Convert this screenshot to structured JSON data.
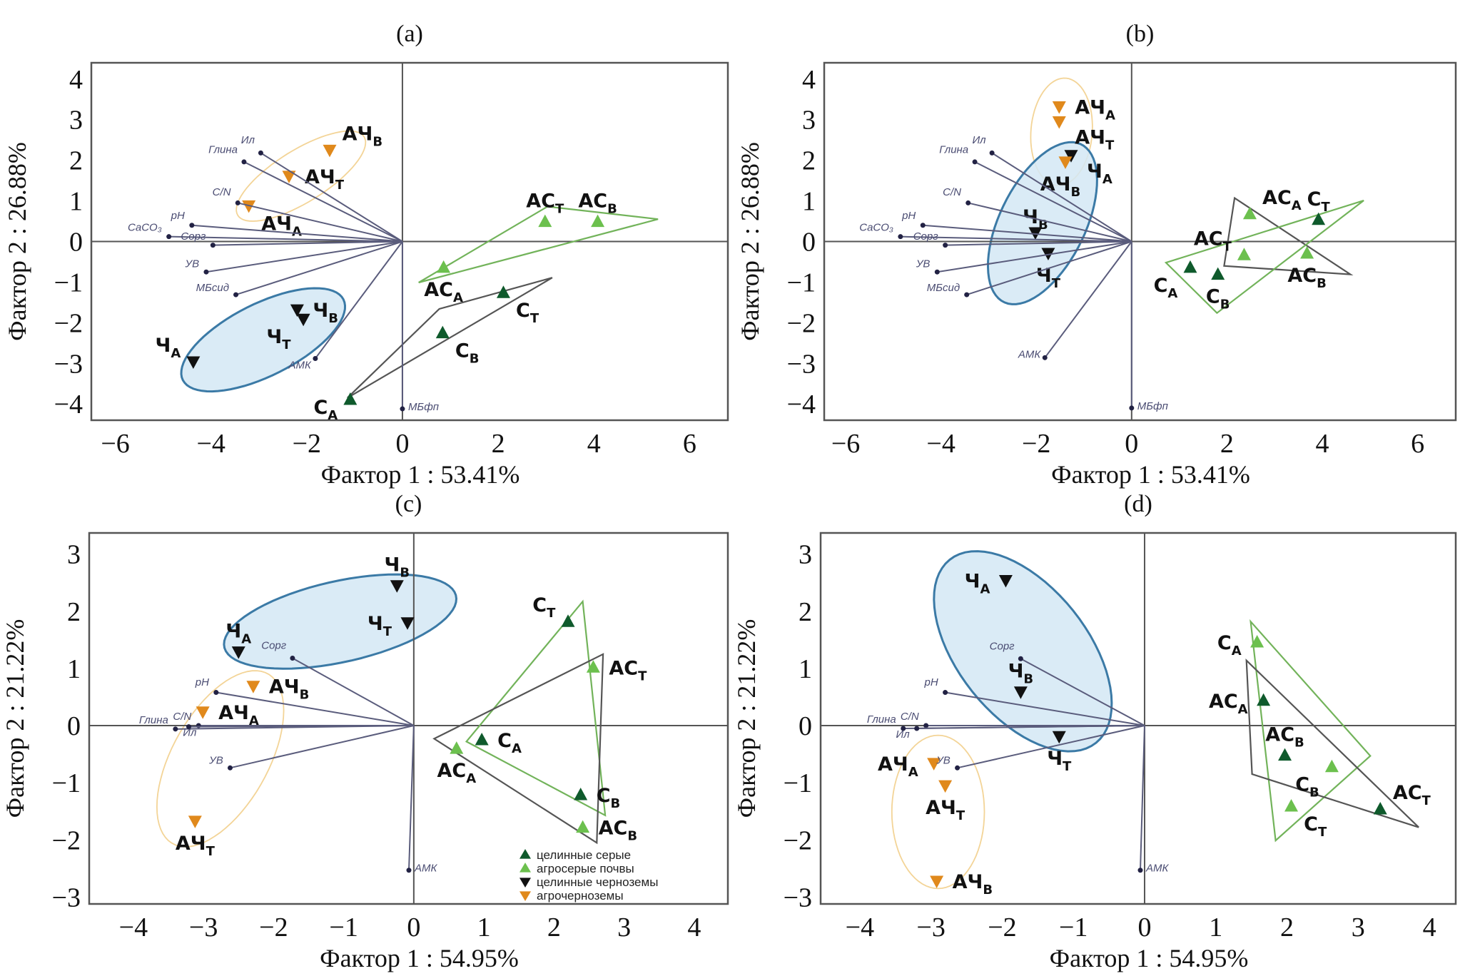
{
  "colors": {
    "dark_green": "#0f5a2c",
    "light_green": "#6cc04e",
    "black": "#111111",
    "orange": "#e0891c",
    "ellipse_fill": "#d3e8f4",
    "ellipse_stroke": "#3b7aa6",
    "orange_ellipse": "#f3d497",
    "green_poly": "#72b35a",
    "grey_poly": "#555555",
    "vector": "#5a5c7c",
    "axis": "#555555"
  },
  "chart_data": [
    {
      "type": "scatter",
      "title": "(a)",
      "xlabel": "Фактор 1 : 53.41%",
      "ylabel": "Фактор 2 : 26.88%",
      "xlim": [
        -6.5,
        6.8
      ],
      "ylim": [
        -4.4,
        4.4
      ],
      "xticks": [
        -6,
        -4,
        -2,
        0,
        2,
        4,
        6
      ],
      "yticks": [
        -4,
        -3,
        -2,
        -1,
        0,
        1,
        2,
        3,
        4
      ],
      "grid": false,
      "points": [
        {
          "label": "АЧ",
          "sub": "В",
          "x": -1.52,
          "y": 2.25,
          "marker": "orange",
          "label_side": "above-right"
        },
        {
          "label": "АЧ",
          "sub": "Т",
          "x": -2.37,
          "y": 1.61,
          "marker": "orange",
          "label_side": "right"
        },
        {
          "label": "АЧ",
          "sub": "А",
          "x": -3.21,
          "y": 0.88,
          "marker": "orange",
          "label_side": "below-right"
        },
        {
          "label": "Ч",
          "sub": "В",
          "x": -2.2,
          "y": -1.68,
          "marker": "black",
          "label_side": "right"
        },
        {
          "label": "Ч",
          "sub": "Т",
          "x": -2.07,
          "y": -1.91,
          "marker": "black",
          "label_side": "below-left"
        },
        {
          "label": "Ч",
          "sub": "А",
          "x": -4.37,
          "y": -2.96,
          "marker": "black",
          "label_side": "above-left"
        },
        {
          "label": "АС",
          "sub": "Т",
          "x": 2.98,
          "y": 0.49,
          "marker": "light_green",
          "label_side": "above"
        },
        {
          "label": "АС",
          "sub": "В",
          "x": 4.08,
          "y": 0.49,
          "marker": "light_green",
          "label_side": "above"
        },
        {
          "label": "АС",
          "sub": "А",
          "x": 0.86,
          "y": -0.64,
          "marker": "light_green",
          "label_side": "below"
        },
        {
          "label": "С",
          "sub": "Т",
          "x": 2.11,
          "y": -1.26,
          "marker": "dark_green",
          "label_side": "below-right"
        },
        {
          "label": "С",
          "sub": "В",
          "x": 0.84,
          "y": -2.25,
          "marker": "dark_green",
          "label_side": "below-right"
        },
        {
          "label": "С",
          "sub": "А",
          "x": -1.09,
          "y": -3.89,
          "marker": "dark_green",
          "label_side": "below-left"
        }
      ],
      "polygons": [
        {
          "color": "green_poly",
          "points": [
            [
              3.03,
              0.86
            ],
            [
              5.34,
              0.55
            ],
            [
              0.34,
              -1.01
            ]
          ]
        },
        {
          "color": "grey_poly",
          "points": [
            [
              3.13,
              -0.89
            ],
            [
              0.77,
              -1.66
            ],
            [
              -1.15,
              -3.85
            ]
          ]
        }
      ],
      "ellipses": [
        {
          "kind": "blue",
          "center": [
            -2.91,
            -2.42
          ],
          "major_end": [
            -1.27,
            -1.36
          ],
          "minor_end": [
            -2.42,
            -3.12
          ]
        },
        {
          "kind": "orange",
          "center": [
            -2.12,
            1.61
          ],
          "major_end": [
            -0.83,
            2.62
          ],
          "minor_end": [
            -1.72,
            1.15
          ]
        }
      ],
      "vectors": [
        {
          "name": "Ил",
          "x": -2.96,
          "y": 2.18
        },
        {
          "name": "Глина",
          "x": -3.31,
          "y": 1.96
        },
        {
          "name": "C/N",
          "x": -3.44,
          "y": 0.95
        },
        {
          "name": "pH",
          "x": -4.4,
          "y": 0.4
        },
        {
          "name": "CaCO₃",
          "x": -4.88,
          "y": 0.12
        },
        {
          "name": "Сорг",
          "x": -3.96,
          "y": -0.09
        },
        {
          "name": "УВ",
          "x": -4.1,
          "y": -0.75
        },
        {
          "name": "МБсид",
          "x": -3.48,
          "y": -1.31
        },
        {
          "name": "АМК",
          "x": -1.82,
          "y": -2.88
        },
        {
          "name": "МБфп",
          "x": 0,
          "y": -4.12
        }
      ]
    },
    {
      "type": "scatter",
      "title": "(b)",
      "xlabel": "Фактор 1 : 53.41%",
      "ylabel": "Фактор 2 : 26.88%",
      "xlim": [
        -6.45,
        6.8
      ],
      "ylim": [
        -4.4,
        4.4
      ],
      "xticks": [
        -6,
        -4,
        -2,
        0,
        2,
        4,
        6
      ],
      "yticks": [
        -4,
        -3,
        -2,
        -1,
        0,
        1,
        2,
        3,
        4
      ],
      "grid": false,
      "points": [
        {
          "label": "АЧ",
          "sub": "А",
          "x": -1.52,
          "y": 3.32,
          "marker": "orange",
          "label_side": "right"
        },
        {
          "label": "АЧ",
          "sub": "Т",
          "x": -1.52,
          "y": 2.95,
          "marker": "orange",
          "label_side": "right"
        },
        {
          "label": "Ч",
          "sub": "А",
          "x": -1.27,
          "y": 2.12,
          "marker": "black",
          "label_side": "right"
        },
        {
          "label": "АЧ",
          "sub": "В",
          "x": -1.39,
          "y": 1.96,
          "marker": "orange",
          "label_side": "below"
        },
        {
          "label": "Ч",
          "sub": "В",
          "x": -2.02,
          "y": 0.22,
          "marker": "black",
          "label_side": "above"
        },
        {
          "label": "Ч",
          "sub": "Т",
          "x": -1.75,
          "y": -0.29,
          "marker": "black",
          "label_side": "below"
        },
        {
          "label": "АС",
          "sub": "А",
          "x": 2.48,
          "y": 0.68,
          "marker": "light_green",
          "label_side": "above-right"
        },
        {
          "label": "С",
          "sub": "Т",
          "x": 3.92,
          "y": 0.54,
          "marker": "dark_green",
          "label_side": "above"
        },
        {
          "label": "АС",
          "sub": "Т",
          "x": 2.36,
          "y": -0.33,
          "marker": "light_green",
          "label_side": "above-left"
        },
        {
          "label": "АС",
          "sub": "В",
          "x": 3.68,
          "y": -0.29,
          "marker": "light_green",
          "label_side": "below"
        },
        {
          "label": "С",
          "sub": "А",
          "x": 1.23,
          "y": -0.64,
          "marker": "dark_green",
          "label_side": "below-left"
        },
        {
          "label": "С",
          "sub": "В",
          "x": 1.81,
          "y": -0.81,
          "marker": "dark_green",
          "label_side": "below"
        }
      ],
      "polygons": [
        {
          "color": "grey_poly",
          "points": [
            [
              2.16,
              1.07
            ],
            [
              4.59,
              -0.81
            ],
            [
              1.94,
              -0.6
            ]
          ]
        },
        {
          "color": "green_poly",
          "points": [
            [
              4.87,
              1.01
            ],
            [
              1.79,
              -1.76
            ],
            [
              0.72,
              -0.52
            ]
          ]
        }
      ],
      "ellipses": [
        {
          "kind": "orange",
          "center": [
            -1.47,
            2.7
          ],
          "major_end": [
            -1.37,
            4.02
          ],
          "minor_end": [
            -0.83,
            2.62
          ]
        },
        {
          "kind": "blue",
          "center": [
            -1.87,
            0.45
          ],
          "major_end": [
            -1.15,
            2.43
          ],
          "minor_end": [
            -0.98,
            0.2
          ]
        }
      ],
      "vectors": [
        {
          "name": "Ил",
          "x": -2.93,
          "y": 2.18
        },
        {
          "name": "Глина",
          "x": -3.29,
          "y": 1.96
        },
        {
          "name": "C/N",
          "x": -3.43,
          "y": 0.95
        },
        {
          "name": "pH",
          "x": -4.38,
          "y": 0.4
        },
        {
          "name": "CaCO₃",
          "x": -4.85,
          "y": 0.12
        },
        {
          "name": "Сорг",
          "x": -3.91,
          "y": -0.09
        },
        {
          "name": "УВ",
          "x": -4.08,
          "y": -0.75
        },
        {
          "name": "МБсид",
          "x": -3.46,
          "y": -1.31
        },
        {
          "name": "АМК",
          "x": -1.82,
          "y": -2.86
        },
        {
          "name": "МБфп",
          "x": 0,
          "y": -4.1
        }
      ]
    },
    {
      "type": "scatter",
      "title": "(c)",
      "xlabel": "Фактор 1 : 54.95%",
      "ylabel": "Фактор 2 : 21.22%",
      "xlim": [
        -4.63,
        4.48
      ],
      "ylim": [
        -3.12,
        3.37
      ],
      "xticks": [
        -4,
        -3,
        -2,
        -1,
        0,
        1,
        2,
        3,
        4
      ],
      "yticks": [
        -3,
        -2,
        -1,
        0,
        1,
        2,
        3
      ],
      "grid": false,
      "points": [
        {
          "label": "Ч",
          "sub": "В",
          "x": -0.24,
          "y": 2.45,
          "marker": "black",
          "label_side": "above"
        },
        {
          "label": "Ч",
          "sub": "Т",
          "x": -0.09,
          "y": 1.8,
          "marker": "black",
          "label_side": "left"
        },
        {
          "label": "Ч",
          "sub": "А",
          "x": -2.5,
          "y": 1.29,
          "marker": "black",
          "label_side": "above"
        },
        {
          "label": "АЧ",
          "sub": "В",
          "x": -2.29,
          "y": 0.69,
          "marker": "orange",
          "label_side": "right"
        },
        {
          "label": "АЧ",
          "sub": "А",
          "x": -3.01,
          "y": 0.24,
          "marker": "orange",
          "label_side": "right"
        },
        {
          "label": "АЧ",
          "sub": "Т",
          "x": -3.12,
          "y": -1.67,
          "marker": "orange",
          "label_side": "below"
        },
        {
          "label": "С",
          "sub": "Т",
          "x": 2.2,
          "y": 1.82,
          "marker": "dark_green",
          "label_side": "above-left"
        },
        {
          "label": "АС",
          "sub": "Т",
          "x": 2.56,
          "y": 1.02,
          "marker": "light_green",
          "label_side": "right"
        },
        {
          "label": "С",
          "sub": "А",
          "x": 0.97,
          "y": -0.25,
          "marker": "dark_green",
          "label_side": "right"
        },
        {
          "label": "АС",
          "sub": "А",
          "x": 0.61,
          "y": -0.4,
          "marker": "light_green",
          "label_side": "below"
        },
        {
          "label": "С",
          "sub": "В",
          "x": 2.38,
          "y": -1.21,
          "marker": "dark_green",
          "label_side": "right"
        },
        {
          "label": "АС",
          "sub": "В",
          "x": 2.41,
          "y": -1.78,
          "marker": "light_green",
          "label_side": "right"
        }
      ],
      "polygons": [
        {
          "color": "green_poly",
          "points": [
            [
              2.41,
              2.17
            ],
            [
              2.73,
              -1.57
            ],
            [
              0.75,
              -0.28
            ]
          ]
        },
        {
          "color": "grey_poly",
          "points": [
            [
              2.7,
              1.25
            ],
            [
              2.61,
              -2.05
            ],
            [
              0.29,
              -0.23
            ]
          ]
        }
      ],
      "ellipses": [
        {
          "kind": "orange",
          "center": [
            -2.76,
            -0.58
          ],
          "major_end": [
            -2.24,
            0.96
          ],
          "minor_end": [
            -2.02,
            -0.63
          ]
        },
        {
          "kind": "blue",
          "center": [
            -1.05,
            1.82
          ],
          "major_end": [
            0.58,
            2.34
          ],
          "minor_end": [
            -0.75,
            1.18
          ]
        }
      ],
      "vectors": [
        {
          "name": "Сорг",
          "x": -1.73,
          "y": 1.18
        },
        {
          "name": "pH",
          "x": -2.82,
          "y": 0.58
        },
        {
          "name": "C/N",
          "x": -3.07,
          "y": 0.0
        },
        {
          "name": "Глина",
          "x": -3.4,
          "y": -0.06
        },
        {
          "name": "Ил",
          "x": -3.21,
          "y": -0.02
        },
        {
          "name": "УВ",
          "x": -2.62,
          "y": -0.74
        },
        {
          "name": "АМК",
          "x": -0.07,
          "y": -2.53
        }
      ],
      "legend": {
        "placement": "bottom-right",
        "entries": [
          {
            "label": "целинные серые",
            "marker": "dark_green"
          },
          {
            "label": "агросерые почвы",
            "marker": "light_green"
          },
          {
            "label": "целинные черноземы",
            "marker": "black"
          },
          {
            "label": "агрочерноземы",
            "marker": "orange"
          }
        ]
      }
    },
    {
      "type": "scatter",
      "title": "(d)",
      "xlabel": "Фактор 1 : 54.95%",
      "ylabel": "Фактор 2 : 21.22%",
      "xlim": [
        -4.55,
        4.37
      ],
      "ylim": [
        -3.12,
        3.37
      ],
      "xticks": [
        -4,
        -3,
        -2,
        -1,
        0,
        1,
        2,
        3,
        4
      ],
      "yticks": [
        -3,
        -2,
        -1,
        0,
        1,
        2,
        3
      ],
      "grid": false,
      "points": [
        {
          "label": "Ч",
          "sub": "А",
          "x": -1.95,
          "y": 2.54,
          "marker": "black",
          "label_side": "left"
        },
        {
          "label": "Ч",
          "sub": "В",
          "x": -1.74,
          "y": 0.59,
          "marker": "black",
          "label_side": "above"
        },
        {
          "label": "Ч",
          "sub": "Т",
          "x": -1.2,
          "y": -0.19,
          "marker": "black",
          "label_side": "below"
        },
        {
          "label": "АЧ",
          "sub": "А",
          "x": -2.96,
          "y": -0.66,
          "marker": "orange",
          "label_side": "left"
        },
        {
          "label": "АЧ",
          "sub": "Т",
          "x": -2.8,
          "y": -1.05,
          "marker": "orange",
          "label_side": "below"
        },
        {
          "label": "АЧ",
          "sub": "В",
          "x": -2.92,
          "y": -2.72,
          "marker": "orange",
          "label_side": "right"
        },
        {
          "label": "С",
          "sub": "А",
          "x": 1.58,
          "y": 1.46,
          "marker": "light_green",
          "label_side": "left"
        },
        {
          "label": "АС",
          "sub": "А",
          "x": 1.67,
          "y": 0.44,
          "marker": "dark_green",
          "label_side": "left"
        },
        {
          "label": "АС",
          "sub": "В",
          "x": 1.97,
          "y": -0.52,
          "marker": "dark_green",
          "label_side": "above"
        },
        {
          "label": "С",
          "sub": "В",
          "x": 2.63,
          "y": -0.72,
          "marker": "light_green",
          "label_side": "below-left"
        },
        {
          "label": "С",
          "sub": "Т",
          "x": 2.06,
          "y": -1.41,
          "marker": "light_green",
          "label_side": "below-right"
        },
        {
          "label": "АС",
          "sub": "Т",
          "x": 3.31,
          "y": -1.46,
          "marker": "dark_green",
          "label_side": "above-right"
        }
      ],
      "polygons": [
        {
          "color": "green_poly",
          "points": [
            [
              1.49,
              1.82
            ],
            [
              3.17,
              -0.53
            ],
            [
              1.84,
              -2.01
            ]
          ]
        },
        {
          "color": "grey_poly",
          "points": [
            [
              1.43,
              1.14
            ],
            [
              3.85,
              -1.78
            ],
            [
              1.51,
              -0.85
            ]
          ]
        }
      ],
      "ellipses": [
        {
          "kind": "blue",
          "center": [
            -1.71,
            1.3
          ],
          "major_end": [
            -2.52,
            3.03
          ],
          "minor_end": [
            -0.76,
            1.57
          ]
        },
        {
          "kind": "orange",
          "center": [
            -2.9,
            -1.51
          ],
          "major_end": [
            -2.9,
            -0.17
          ],
          "minor_end": [
            -2.25,
            -1.51
          ]
        }
      ],
      "vectors": [
        {
          "name": "Сорг",
          "x": -1.74,
          "y": 1.17
        },
        {
          "name": "pH",
          "x": -2.8,
          "y": 0.58
        },
        {
          "name": "C/N",
          "x": -3.07,
          "y": 0.0
        },
        {
          "name": "Глина",
          "x": -3.39,
          "y": -0.05
        },
        {
          "name": "Ил",
          "x": -3.2,
          "y": -0.05
        },
        {
          "name": "УВ",
          "x": -2.63,
          "y": -0.74
        },
        {
          "name": "АМК",
          "x": -0.06,
          "y": -2.53
        }
      ]
    }
  ]
}
